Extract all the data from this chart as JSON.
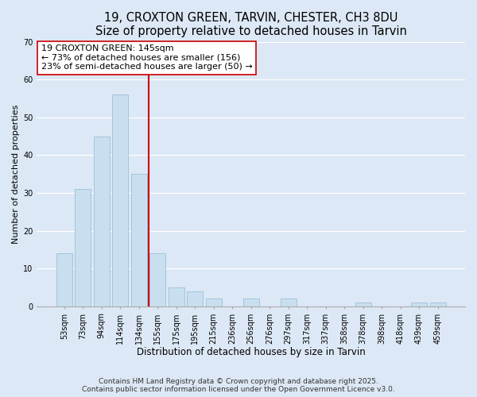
{
  "title": "19, CROXTON GREEN, TARVIN, CHESTER, CH3 8DU",
  "subtitle": "Size of property relative to detached houses in Tarvin",
  "xlabel": "Distribution of detached houses by size in Tarvin",
  "ylabel": "Number of detached properties",
  "bar_labels": [
    "53sqm",
    "73sqm",
    "94sqm",
    "114sqm",
    "134sqm",
    "155sqm",
    "175sqm",
    "195sqm",
    "215sqm",
    "236sqm",
    "256sqm",
    "276sqm",
    "297sqm",
    "317sqm",
    "337sqm",
    "358sqm",
    "378sqm",
    "398sqm",
    "418sqm",
    "439sqm",
    "459sqm"
  ],
  "bar_values": [
    14,
    31,
    45,
    56,
    35,
    14,
    5,
    4,
    2,
    0,
    2,
    0,
    2,
    0,
    0,
    0,
    1,
    0,
    0,
    1,
    1
  ],
  "bar_color": "#c9dff0",
  "bar_edge_color": "#9cbfd8",
  "vline_x": 4.5,
  "vline_color": "#cc0000",
  "annotation_title": "19 CROXTON GREEN: 145sqm",
  "annotation_line1": "← 73% of detached houses are smaller (156)",
  "annotation_line2": "23% of semi-detached houses are larger (50) →",
  "annotation_box_facecolor": "#ffffff",
  "annotation_box_edgecolor": "#cc0000",
  "ylim": [
    0,
    70
  ],
  "yticks": [
    0,
    10,
    20,
    30,
    40,
    50,
    60,
    70
  ],
  "background_color": "#dce8f5",
  "footer_line1": "Contains HM Land Registry data © Crown copyright and database right 2025.",
  "footer_line2": "Contains public sector information licensed under the Open Government Licence v3.0.",
  "title_fontsize": 10.5,
  "subtitle_fontsize": 9.5,
  "xlabel_fontsize": 8.5,
  "ylabel_fontsize": 8,
  "tick_fontsize": 7,
  "annotation_fontsize": 8,
  "footer_fontsize": 6.5
}
